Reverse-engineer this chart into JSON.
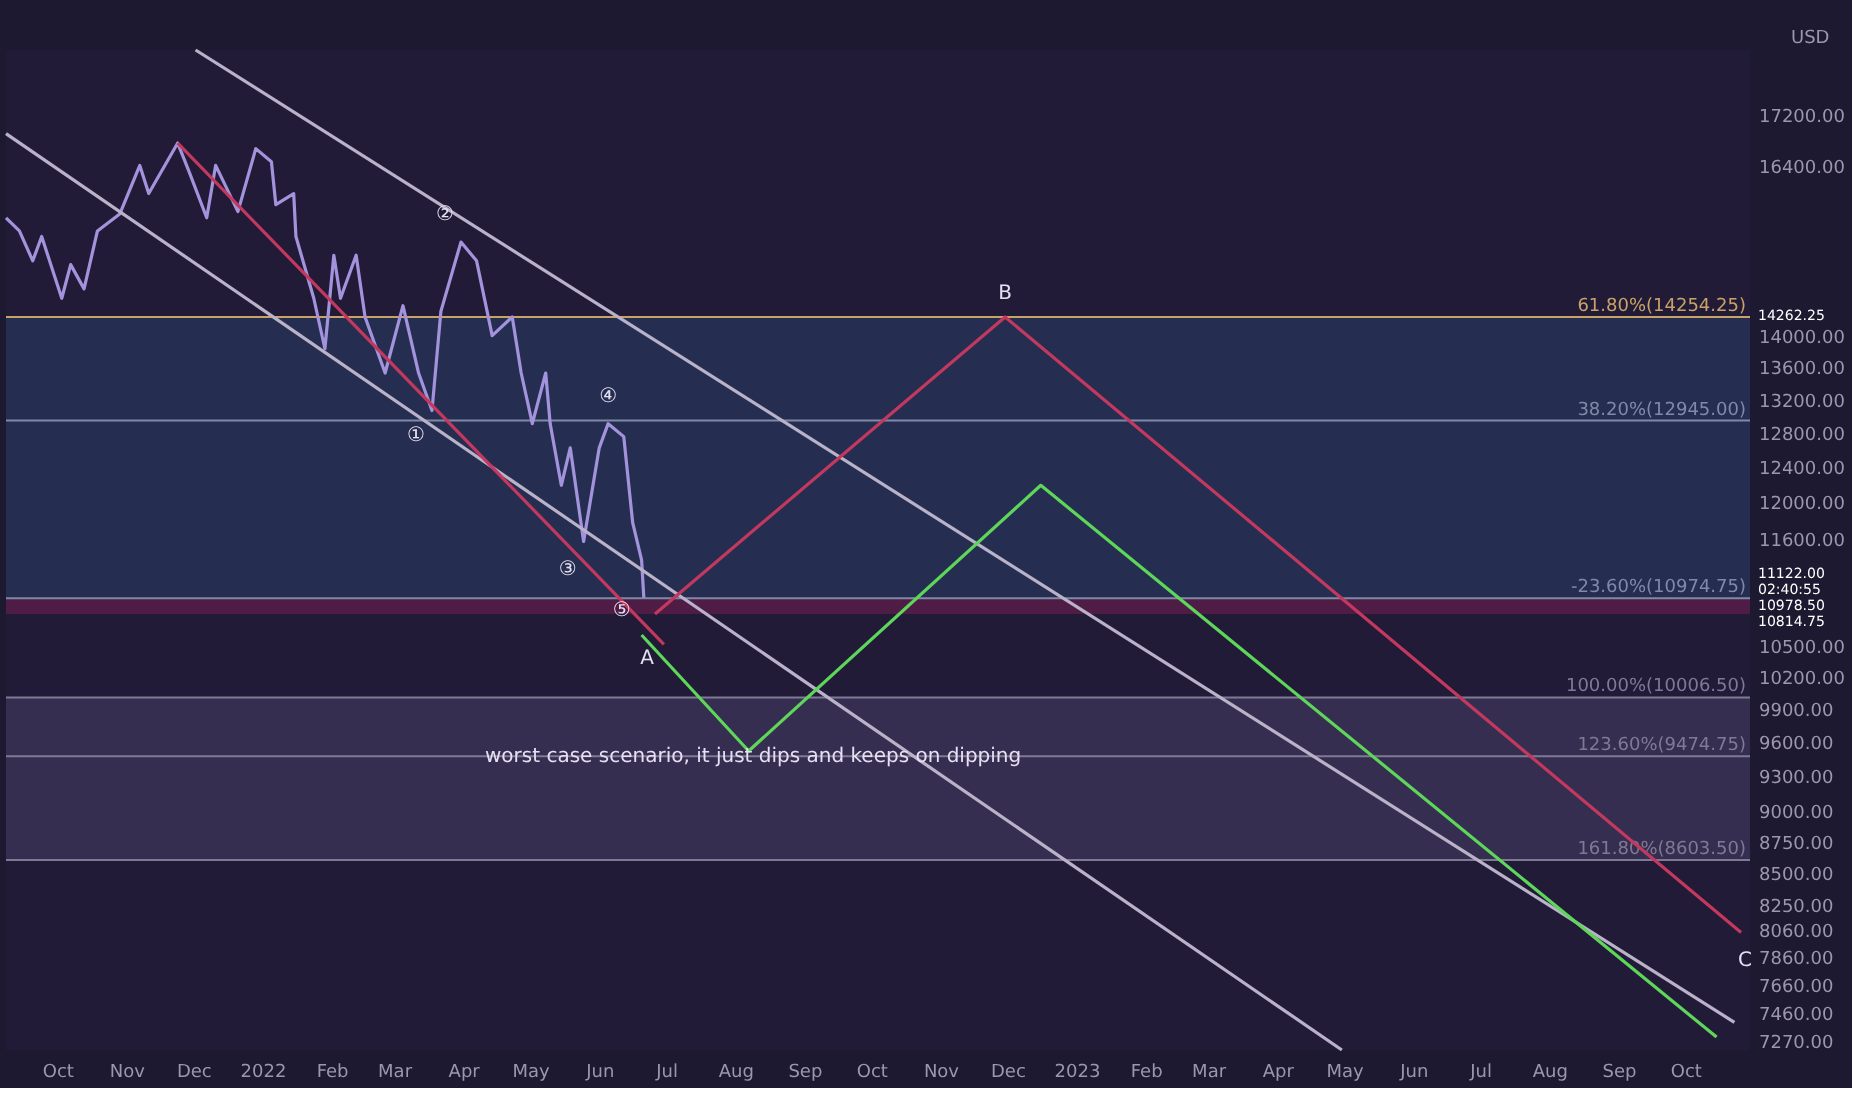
{
  "chart_data": {
    "type": "line",
    "ylabel": "USD",
    "log": true,
    "grid": false,
    "marker": "none",
    "line_style": "solid",
    "xlim": [
      "2021-09-08",
      "2023-10-30"
    ],
    "xticks": [
      {
        "value": "2021-10-01",
        "label": "Oct"
      },
      {
        "value": "2021-11-01",
        "label": "Nov"
      },
      {
        "value": "2021-12-01",
        "label": "Dec"
      },
      {
        "value": "2022-01-01",
        "label": "2022"
      },
      {
        "value": "2022-02-01",
        "label": "Feb"
      },
      {
        "value": "2022-03-01",
        "label": "Mar"
      },
      {
        "value": "2022-04-01",
        "label": "Apr"
      },
      {
        "value": "2022-05-01",
        "label": "May"
      },
      {
        "value": "2022-06-01",
        "label": "Jun"
      },
      {
        "value": "2022-07-01",
        "label": "Jul"
      },
      {
        "value": "2022-08-01",
        "label": "Aug"
      },
      {
        "value": "2022-09-01",
        "label": "Sep"
      },
      {
        "value": "2022-10-01",
        "label": "Oct"
      },
      {
        "value": "2022-11-01",
        "label": "Nov"
      },
      {
        "value": "2022-12-01",
        "label": "Dec"
      },
      {
        "value": "2023-01-01",
        "label": "2023"
      },
      {
        "value": "2023-02-01",
        "label": "Feb"
      },
      {
        "value": "2023-03-01",
        "label": "Mar"
      },
      {
        "value": "2023-04-01",
        "label": "Apr"
      },
      {
        "value": "2023-05-01",
        "label": "May"
      },
      {
        "value": "2023-06-01",
        "label": "Jun"
      },
      {
        "value": "2023-07-01",
        "label": "Jul"
      },
      {
        "value": "2023-08-01",
        "label": "Aug"
      },
      {
        "value": "2023-09-01",
        "label": "Sep"
      },
      {
        "value": "2023-10-01",
        "label": "Oct"
      }
    ],
    "ylim": [
      7210,
      18270
    ],
    "yticks": [
      {
        "value": 17200,
        "label": "17200.00"
      },
      {
        "value": 16400,
        "label": "16400.00"
      },
      {
        "value": 14000,
        "label": "14000.00"
      },
      {
        "value": 13600,
        "label": "13600.00"
      },
      {
        "value": 13200,
        "label": "13200.00"
      },
      {
        "value": 12800,
        "label": "12800.00"
      },
      {
        "value": 12400,
        "label": "12400.00"
      },
      {
        "value": 12000,
        "label": "12000.00"
      },
      {
        "value": 11600,
        "label": "11600.00"
      },
      {
        "value": 10500,
        "label": "10500.00"
      },
      {
        "value": 10200,
        "label": "10200.00"
      },
      {
        "value": 9900,
        "label": "9900.00"
      },
      {
        "value": 9600,
        "label": "9600.00"
      },
      {
        "value": 9300,
        "label": "9300.00"
      },
      {
        "value": 9000,
        "label": "9000.00"
      },
      {
        "value": 8750,
        "label": "8750.00"
      },
      {
        "value": 8500,
        "label": "8500.00"
      },
      {
        "value": 8250,
        "label": "8250.00"
      },
      {
        "value": 8060,
        "label": "8060.00"
      },
      {
        "value": 7860,
        "label": "7860.00"
      },
      {
        "value": 7660,
        "label": "7660.00"
      },
      {
        "value": 7460,
        "label": "7460.00"
      },
      {
        "value": 7270,
        "label": "7270.00"
      }
    ],
    "bands": [
      {
        "axis": "y",
        "from": 10974.75,
        "to": 14254.25,
        "color": "#27355a"
      },
      {
        "axis": "y",
        "from": 10814.75,
        "to": 10974.75,
        "color": "#5e1d48"
      },
      {
        "axis": "y",
        "from": 8603.5,
        "to": 10006.5,
        "color": "#3e3658"
      }
    ],
    "ref_lines": [
      {
        "axis": "y",
        "value": 14254.25,
        "label": "61.80%(14254.25)",
        "color": "#c9a268"
      },
      {
        "axis": "y",
        "value": 12945,
        "label": "38.20%(12945.00)",
        "color": "#7f8aa8"
      },
      {
        "axis": "y",
        "value": 10974.75,
        "label": "-23.60%(10974.75)",
        "color": "#7f8aa8"
      },
      {
        "axis": "y",
        "value": 10006.5,
        "label": "100.00%(10006.50)",
        "color": "#7f7a94"
      },
      {
        "axis": "y",
        "value": 9474.75,
        "label": "123.60%(9474.75)",
        "color": "#7f7a94"
      },
      {
        "axis": "y",
        "value": 8603.5,
        "label": "161.80%(8603.50)",
        "color": "#7f7a94"
      }
    ],
    "series": [
      {
        "color": "#a393dc",
        "x": [
          "2021-09-08",
          "2021-09-14",
          "2021-09-20",
          "2021-09-24",
          "2021-10-03",
          "2021-10-07",
          "2021-10-13",
          "2021-10-19",
          "2021-10-29",
          "2021-11-07",
          "2021-11-11",
          "2021-11-24",
          "2021-11-29",
          "2021-12-07",
          "2021-12-11",
          "2021-12-21",
          "2021-12-29",
          "2022-01-05",
          "2022-01-07",
          "2022-01-15",
          "2022-01-16",
          "2022-01-24",
          "2022-01-29",
          "2022-02-02",
          "2022-02-05",
          "2022-02-12",
          "2022-02-16",
          "2022-02-25",
          "2022-03-05",
          "2022-03-12",
          "2022-03-18",
          "2022-03-22",
          "2022-03-31",
          "2022-04-07",
          "2022-04-14",
          "2022-04-23",
          "2022-04-27",
          "2022-05-02",
          "2022-05-08",
          "2022-05-10",
          "2022-05-15",
          "2022-05-19",
          "2022-05-25",
          "2022-06-01",
          "2022-06-05",
          "2022-06-12",
          "2022-06-16",
          "2022-06-20",
          "2022-06-21"
        ],
        "values": [
          15631,
          15441,
          15018,
          15361,
          14504,
          14965,
          14631,
          15441,
          15685,
          16411,
          15987,
          16756,
          16325,
          15631,
          16411,
          15720,
          16669,
          16468,
          15822,
          15987,
          15361,
          14504,
          13839,
          15096,
          14504,
          15096,
          14254,
          13530,
          14404,
          13530,
          13066,
          14328,
          15282,
          15018,
          14009,
          14254,
          13530,
          12908,
          13530,
          12908,
          12189,
          12621,
          11569,
          12621,
          12908,
          12753,
          11772,
          11369,
          10978.5
        ]
      },
      {
        "color": "#b9b2c9",
        "x": [
          "2021-12-02",
          "2023-10-23"
        ],
        "values": [
          18270,
          7398
        ]
      },
      {
        "color": "#b9b2c9",
        "x": [
          "2021-09-08",
          "2023-04-30"
        ],
        "values": [
          16903,
          7210
        ]
      },
      {
        "color": "#c2385e",
        "x": [
          "2021-11-24",
          "2022-06-30"
        ],
        "values": [
          16756,
          10514
        ]
      },
      {
        "color": "#c2385e",
        "x": [
          "2022-06-26",
          "2022-11-30",
          "2023-10-26"
        ],
        "values": [
          10814.75,
          14254.25,
          8043
        ]
      },
      {
        "color": "#5ed65a",
        "x": [
          "2022-06-20",
          "2022-08-07",
          "2022-12-16",
          "2023-10-15"
        ],
        "values": [
          10605,
          9521,
          12189,
          7297
        ]
      }
    ],
    "annotations": [
      {
        "text": "worst case scenario, it just dips and keeps on dipping",
        "x": "2022-08-09",
        "y": 9474.75
      },
      {
        "text": "A",
        "x": "2022-06-26",
        "y": 10814.75
      },
      {
        "text": "B",
        "x": "2022-11-30",
        "y": 14254.25
      },
      {
        "text": "C",
        "x": "2023-10-26",
        "y": 8043
      },
      {
        "text": "①",
        "x": "2022-03-18",
        "y": 13066
      },
      {
        "text": "②",
        "x": "2022-03-31",
        "y": 15282
      },
      {
        "text": "③",
        "x": "2022-05-25",
        "y": 11569
      },
      {
        "text": "④",
        "x": "2022-06-05",
        "y": 12908
      },
      {
        "text": "⑤",
        "x": "2022-06-21",
        "y": 10978.5
      },
      "14262.25",
      "11122.00",
      "02:40:55",
      "10978.50",
      "10814.75"
    ]
  }
}
